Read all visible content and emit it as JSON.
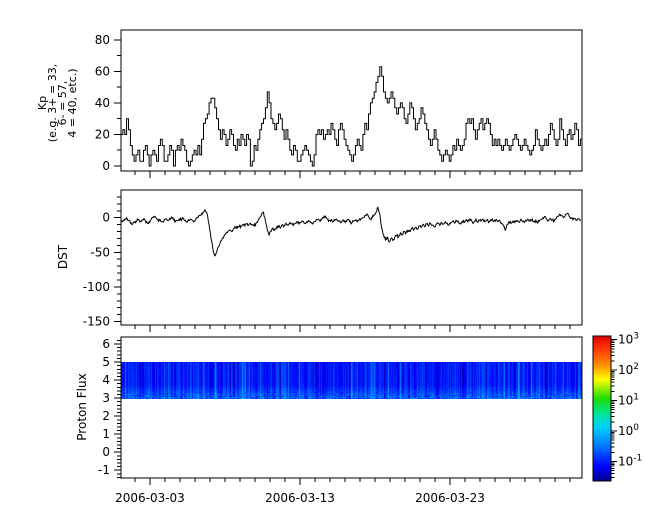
{
  "figure": {
    "background": "#ffffff",
    "frame_color": "#000000"
  },
  "chart_data": [
    {
      "panel": "kp",
      "type": "line",
      "subtype": "step",
      "ylabel_lines": [
        "Kp",
        "(e.g. 3+ = 33,",
        "6- = 57,",
        "4 = 40, etc.)"
      ],
      "ylim": [
        -3.2,
        86.3
      ],
      "yticks": [
        0,
        20,
        40,
        60,
        80
      ],
      "y_minor_step": 10,
      "samples_per_day": 8,
      "line_color": "#000000",
      "values": [
        20,
        23,
        20,
        30,
        23,
        13,
        7,
        3,
        7,
        10,
        3,
        3,
        10,
        13,
        7,
        0,
        7,
        10,
        7,
        3,
        13,
        17,
        13,
        3,
        3,
        7,
        13,
        10,
        0,
        10,
        13,
        10,
        17,
        13,
        10,
        3,
        0,
        3,
        7,
        10,
        7,
        13,
        7,
        17,
        27,
        30,
        33,
        40,
        43,
        43,
        37,
        30,
        23,
        17,
        23,
        20,
        13,
        17,
        23,
        20,
        13,
        10,
        17,
        13,
        20,
        17,
        13,
        20,
        17,
        0,
        3,
        13,
        10,
        17,
        23,
        27,
        30,
        37,
        47,
        40,
        30,
        27,
        23,
        27,
        33,
        30,
        23,
        17,
        23,
        17,
        10,
        7,
        13,
        10,
        3,
        3,
        7,
        10,
        13,
        10,
        7,
        3,
        0,
        7,
        20,
        23,
        20,
        23,
        17,
        20,
        23,
        20,
        27,
        23,
        17,
        13,
        23,
        27,
        23,
        17,
        13,
        10,
        7,
        3,
        7,
        13,
        17,
        13,
        10,
        20,
        27,
        23,
        33,
        40,
        43,
        47,
        53,
        57,
        63,
        57,
        47,
        43,
        40,
        43,
        47,
        43,
        37,
        33,
        37,
        40,
        37,
        30,
        27,
        33,
        40,
        37,
        30,
        23,
        27,
        30,
        37,
        33,
        27,
        23,
        17,
        13,
        17,
        23,
        17,
        10,
        7,
        3,
        7,
        10,
        7,
        3,
        7,
        13,
        10,
        17,
        13,
        10,
        13,
        17,
        27,
        30,
        27,
        30,
        23,
        17,
        23,
        27,
        30,
        23,
        27,
        30,
        27,
        20,
        13,
        17,
        13,
        17,
        13,
        10,
        13,
        17,
        13,
        10,
        13,
        17,
        20,
        17,
        13,
        10,
        13,
        17,
        13,
        10,
        7,
        10,
        13,
        23,
        17,
        13,
        10,
        13,
        17,
        13,
        20,
        27,
        23,
        17,
        13,
        17,
        30,
        23,
        17,
        13,
        20,
        23,
        17,
        20,
        27,
        23,
        13,
        17
      ]
    },
    {
      "panel": "dst",
      "type": "line",
      "ylabel_lines": [
        "DST"
      ],
      "ylim": [
        -155,
        40
      ],
      "yticks": [
        0,
        -50,
        -100,
        -150
      ],
      "y_minor_step": 10,
      "samples_per_day": 8,
      "line_color": "#000000",
      "values": [
        -3,
        -5,
        -2,
        0,
        -4,
        -8,
        -10,
        -7,
        -5,
        -3,
        -6,
        -4,
        -2,
        -5,
        -8,
        -6,
        -3,
        0,
        2,
        -2,
        -5,
        -3,
        -6,
        -4,
        -2,
        -4,
        -1,
        1,
        -3,
        -6,
        -4,
        -2,
        -3,
        -1,
        -4,
        -6,
        -3,
        -2,
        -4,
        -5,
        -2,
        0,
        3,
        6,
        8,
        10,
        5,
        -10,
        -30,
        -45,
        -55,
        -50,
        -42,
        -35,
        -30,
        -26,
        -22,
        -20,
        -18,
        -20,
        -16,
        -14,
        -15,
        -13,
        -12,
        -10,
        -12,
        -9,
        -11,
        -8,
        -10,
        -12,
        -8,
        -5,
        0,
        5,
        8,
        -5,
        -18,
        -25,
        -20,
        -15,
        -18,
        -14,
        -12,
        -15,
        -10,
        -12,
        -8,
        -10,
        -7,
        -9,
        -11,
        -8,
        -6,
        -9,
        -7,
        -5,
        -8,
        -6,
        -4,
        -7,
        -9,
        -6,
        -4,
        -2,
        -5,
        -3,
        0,
        2,
        -2,
        -4,
        -3,
        -6,
        -4,
        -2,
        -5,
        -7,
        -4,
        -6,
        -5,
        -3,
        -6,
        -8,
        -5,
        -4,
        -6,
        -3,
        -2,
        0,
        3,
        5,
        2,
        -2,
        0,
        4,
        8,
        15,
        5,
        -15,
        -25,
        -32,
        -28,
        -35,
        -30,
        -33,
        -28,
        -25,
        -28,
        -22,
        -25,
        -20,
        -22,
        -18,
        -20,
        -15,
        -18,
        -14,
        -16,
        -12,
        -14,
        -10,
        -13,
        -9,
        -12,
        -8,
        -11,
        -13,
        -10,
        -8,
        -11,
        -7,
        -9,
        -6,
        -8,
        -10,
        -7,
        -5,
        -8,
        -4,
        -6,
        -9,
        -5,
        -7,
        -4,
        -6,
        -2,
        -5,
        -8,
        -3,
        -6,
        -4,
        -5,
        -2,
        -6,
        -3,
        -7,
        -4,
        -2,
        -5,
        -3,
        -6,
        -4,
        -8,
        -12,
        -18,
        -10,
        -6,
        -8,
        -5,
        -7,
        -4,
        -6,
        -3,
        -5,
        -7,
        -4,
        -2,
        -5,
        -3,
        -6,
        -4,
        -7,
        -5,
        -3,
        0,
        2,
        -2,
        -4,
        -1,
        -3,
        -5,
        -2,
        2,
        5,
        3,
        0,
        4,
        6,
        2,
        0,
        -3,
        -1,
        -4,
        -2,
        -5
      ]
    },
    {
      "panel": "proton_flux",
      "type": "heatmap",
      "ylabel_lines": [
        "Proton Flux"
      ],
      "ylim": [
        -1.43,
        6.39
      ],
      "yticks": [
        -1,
        0,
        1,
        2,
        3,
        4,
        5,
        6
      ],
      "y_minor_step": 0.2,
      "colormap": "jet",
      "band": {
        "y_min": 3,
        "y_max": 5,
        "flux_min": 0.05,
        "flux_typical": 0.12,
        "flux_max": 0.9
      }
    }
  ],
  "x_axis": {
    "tick_labels": [
      "2006-03-03",
      "2006-03-13",
      "2006-03-23"
    ],
    "tick_days": [
      1.93,
      11.93,
      21.93
    ],
    "minor_step_days": 1,
    "span_days": 30.73
  },
  "colorbar": {
    "scale": "log",
    "tick_base": "10",
    "tick_exponents": [
      3,
      2,
      1,
      0,
      -1
    ],
    "range_log10": [
      -1.64,
      3.12
    ],
    "gradient_stops": [
      [
        0.0,
        "#00008f"
      ],
      [
        0.1,
        "#0000ff"
      ],
      [
        0.25,
        "#0080ff"
      ],
      [
        0.37,
        "#00d0ff"
      ],
      [
        0.47,
        "#00e690"
      ],
      [
        0.57,
        "#20dd00"
      ],
      [
        0.7,
        "#ffff00"
      ],
      [
        0.8,
        "#ff9000"
      ],
      [
        0.9,
        "#ff4000"
      ],
      [
        1.0,
        "#e00000"
      ]
    ]
  }
}
